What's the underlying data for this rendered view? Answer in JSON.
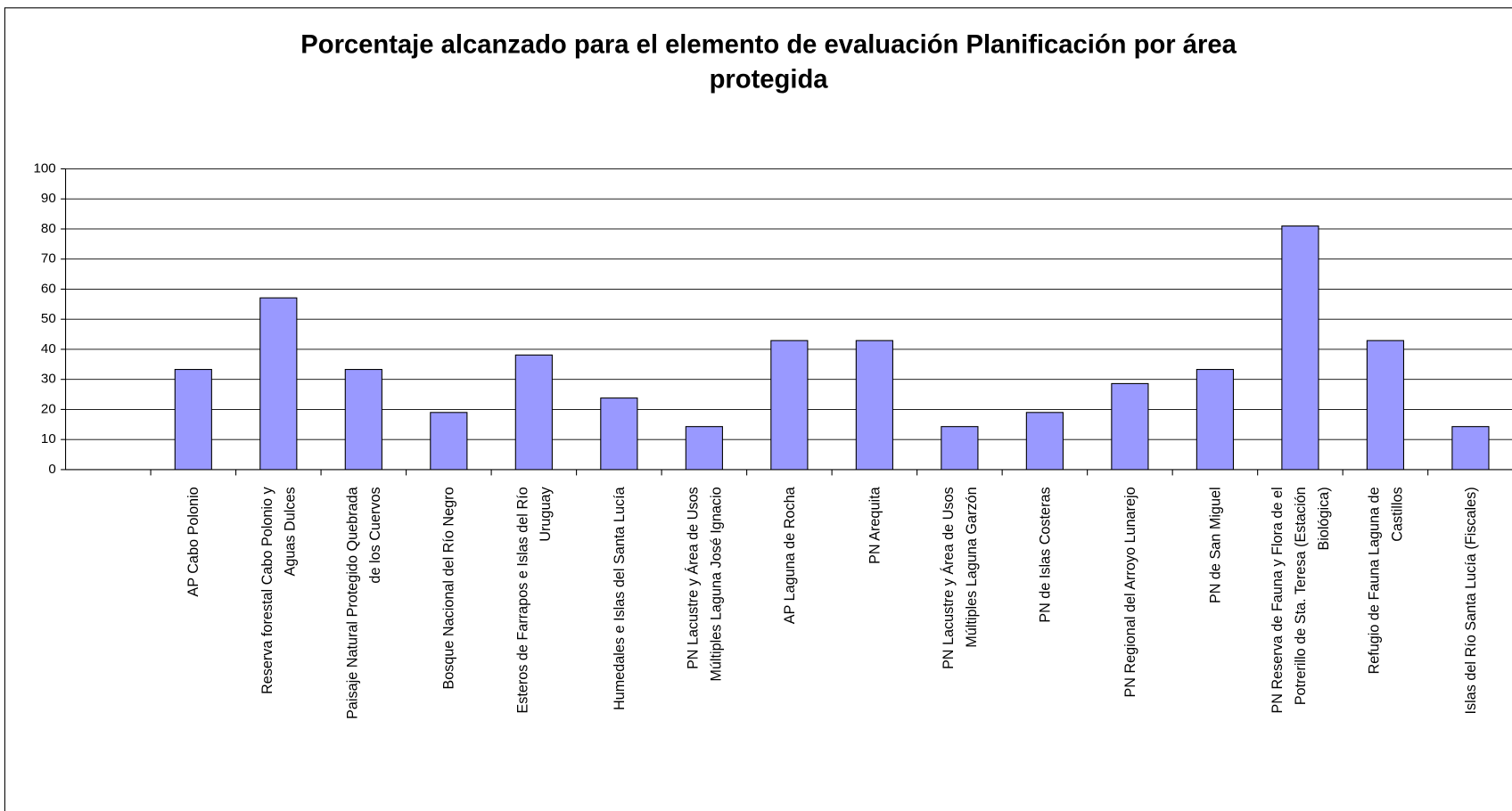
{
  "chart_data": {
    "type": "bar",
    "title": "Porcentaje alcanzado para el elemento de evaluación Planificación por área\nprotegida",
    "categories": [
      null,
      "AP Cabo Polonio",
      "Reserva forestal Cabo Polonio y\nAguas Dulces",
      "Paisaje Natural Protegido Quebrada\nde los Cuervos",
      "Bosque  Nacional del Río Negro",
      "Esteros de Farrapos e Islas del Río\nUruguay",
      "Humedales e Islas del Santa Lucía",
      "PN Lacustre y Área de Usos\nMúltiples Laguna José Ignacio",
      "AP Laguna de Rocha",
      "PN Arequita",
      "PN Lacustre y Área de Usos\nMúltiples Laguna Garzón",
      "PN de Islas Costeras",
      "PN Regional del Arroyo Lunarejo",
      "PN de San Miguel",
      "PN Reserva de Fauna y Flora de el\nPotrerillo de Sta. Teresa (Estación\nBiológica)",
      "Refugio de Fauna Laguna de\nCastillos",
      "Islas del Río Santa Lucía (Fiscales)"
    ],
    "values": [
      null,
      33.3,
      57.1,
      33.3,
      19,
      38.1,
      23.8,
      14.3,
      42.9,
      42.9,
      14.3,
      19,
      28.6,
      33.3,
      81,
      42.9,
      14.3
    ],
    "color": "#9999ff",
    "ylim": [
      0,
      100
    ],
    "yticks": [
      0,
      10,
      20,
      30,
      40,
      50,
      60,
      70,
      80,
      90,
      100
    ],
    "grid": true
  }
}
